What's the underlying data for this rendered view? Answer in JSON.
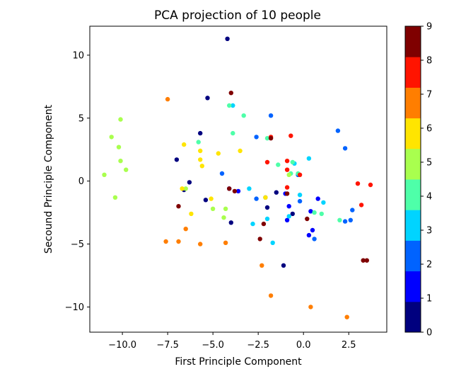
{
  "chart_data": {
    "type": "scatter",
    "title": "PCA projection of 10 people",
    "xlabel": "First Principle Component",
    "ylabel": "Secound Principle Component",
    "xlim": [
      -11.8,
      4.6
    ],
    "ylim": [
      -12.0,
      12.3
    ],
    "xticks": [
      -10.0,
      -7.5,
      -5.0,
      -2.5,
      0.0,
      2.5
    ],
    "xtick_labels": [
      "−10.0",
      "−7.5",
      "−5.0",
      "−2.5",
      "0.0",
      "2.5"
    ],
    "yticks": [
      -10,
      -5,
      0,
      5,
      10
    ],
    "ytick_labels": [
      "−10",
      "−5",
      "0",
      "5",
      "10"
    ],
    "grid": false,
    "colormap": "jet",
    "colorbar": {
      "min": 0,
      "max": 9,
      "ticks": [
        0,
        1,
        2,
        3,
        4,
        5,
        6,
        7,
        8,
        9
      ],
      "tick_labels": [
        "0",
        "1",
        "2",
        "3",
        "4",
        "5",
        "6",
        "7",
        "8",
        "9"
      ],
      "colors": [
        "#00007f",
        "#0000ff",
        "#0063ff",
        "#00d4ff",
        "#4effa9",
        "#a9ff4e",
        "#ffe500",
        "#ff7e00",
        "#ff1400",
        "#7f0000"
      ]
    },
    "points": [
      {
        "x": -4.2,
        "y": 11.3,
        "label": 0
      },
      {
        "x": -5.3,
        "y": 6.6,
        "label": 0
      },
      {
        "x": -5.7,
        "y": 3.8,
        "label": 0
      },
      {
        "x": -7.0,
        "y": 1.7,
        "label": 0
      },
      {
        "x": -6.3,
        "y": -0.1,
        "label": 0
      },
      {
        "x": -6.6,
        "y": -0.7,
        "label": 0
      },
      {
        "x": -5.4,
        "y": -1.5,
        "label": 0
      },
      {
        "x": -4.0,
        "y": -3.3,
        "label": 0
      },
      {
        "x": -1.5,
        "y": -0.9,
        "label": 0
      },
      {
        "x": -2.0,
        "y": -2.1,
        "label": 0
      },
      {
        "x": -0.6,
        "y": -2.6,
        "label": 0
      },
      {
        "x": -1.1,
        "y": -6.7,
        "label": 0
      },
      {
        "x": -4.1,
        "y": -0.6,
        "label": 1
      },
      {
        "x": -3.6,
        "y": -0.8,
        "label": 1
      },
      {
        "x": -1.0,
        "y": -1.0,
        "label": 1
      },
      {
        "x": -0.8,
        "y": -2.0,
        "label": 1
      },
      {
        "x": 0.4,
        "y": -2.4,
        "label": 1
      },
      {
        "x": 0.5,
        "y": -3.9,
        "label": 1
      },
      {
        "x": 0.3,
        "y": -4.3,
        "label": 1
      },
      {
        "x": 0.8,
        "y": -1.4,
        "label": 1
      },
      {
        "x": -0.9,
        "y": -3.1,
        "label": 1
      },
      {
        "x": -1.8,
        "y": 5.2,
        "label": 2
      },
      {
        "x": -2.6,
        "y": 3.5,
        "label": 2
      },
      {
        "x": 1.9,
        "y": 4.0,
        "label": 2
      },
      {
        "x": 2.3,
        "y": 2.6,
        "label": 2
      },
      {
        "x": -4.5,
        "y": 0.6,
        "label": 2
      },
      {
        "x": -2.1,
        "y": -1.3,
        "label": 2
      },
      {
        "x": -0.2,
        "y": -1.6,
        "label": 2
      },
      {
        "x": -2.6,
        "y": -1.4,
        "label": 2
      },
      {
        "x": 0.6,
        "y": -4.6,
        "label": 2
      },
      {
        "x": 2.3,
        "y": -3.2,
        "label": 2
      },
      {
        "x": 2.6,
        "y": -3.1,
        "label": 2
      },
      {
        "x": 2.7,
        "y": -2.3,
        "label": 2
      },
      {
        "x": -0.3,
        "y": 0.5,
        "label": 2
      },
      {
        "x": -3.9,
        "y": 6.0,
        "label": 3
      },
      {
        "x": -0.5,
        "y": 1.4,
        "label": 3
      },
      {
        "x": 0.3,
        "y": 1.8,
        "label": 3
      },
      {
        "x": -0.8,
        "y": -2.8,
        "label": 3
      },
      {
        "x": -2.0,
        "y": -3.0,
        "label": 3
      },
      {
        "x": -2.8,
        "y": -3.4,
        "label": 3
      },
      {
        "x": -1.7,
        "y": -4.9,
        "label": 3
      },
      {
        "x": -3.0,
        "y": -0.6,
        "label": 3
      },
      {
        "x": 1.1,
        "y": -1.7,
        "label": 3
      },
      {
        "x": -0.2,
        "y": -1.1,
        "label": 3
      },
      {
        "x": -5.8,
        "y": 3.1,
        "label": 4
      },
      {
        "x": -4.1,
        "y": 6.0,
        "label": 4
      },
      {
        "x": -3.3,
        "y": 5.2,
        "label": 4
      },
      {
        "x": -3.9,
        "y": 3.8,
        "label": 4
      },
      {
        "x": -2.0,
        "y": 3.4,
        "label": 4
      },
      {
        "x": -1.4,
        "y": 1.3,
        "label": 4
      },
      {
        "x": -0.6,
        "y": 1.5,
        "label": 4
      },
      {
        "x": -0.7,
        "y": 0.6,
        "label": 4
      },
      {
        "x": -0.3,
        "y": 0.6,
        "label": 4
      },
      {
        "x": 0.6,
        "y": -2.5,
        "label": 4
      },
      {
        "x": 1.0,
        "y": -2.6,
        "label": 4
      },
      {
        "x": 2.0,
        "y": -3.1,
        "label": 4
      },
      {
        "x": -10.1,
        "y": 4.9,
        "label": 5
      },
      {
        "x": -10.6,
        "y": 3.5,
        "label": 5
      },
      {
        "x": -10.2,
        "y": 2.7,
        "label": 5
      },
      {
        "x": -10.1,
        "y": 1.6,
        "label": 5
      },
      {
        "x": -9.8,
        "y": 0.9,
        "label": 5
      },
      {
        "x": -11.0,
        "y": 0.5,
        "label": 5
      },
      {
        "x": -10.4,
        "y": -1.3,
        "label": 5
      },
      {
        "x": -6.5,
        "y": -0.6,
        "label": 5
      },
      {
        "x": -5.0,
        "y": -2.2,
        "label": 5
      },
      {
        "x": -4.3,
        "y": -2.2,
        "label": 5
      },
      {
        "x": -4.4,
        "y": -2.9,
        "label": 5
      },
      {
        "x": -0.8,
        "y": 0.5,
        "label": 5
      },
      {
        "x": -6.6,
        "y": 2.9,
        "label": 6
      },
      {
        "x": -5.7,
        "y": 2.4,
        "label": 6
      },
      {
        "x": -5.7,
        "y": 1.7,
        "label": 6
      },
      {
        "x": -5.6,
        "y": 1.2,
        "label": 6
      },
      {
        "x": -4.7,
        "y": 2.2,
        "label": 6
      },
      {
        "x": -3.5,
        "y": 2.4,
        "label": 6
      },
      {
        "x": -6.7,
        "y": -0.6,
        "label": 6
      },
      {
        "x": -6.2,
        "y": -2.6,
        "label": 6
      },
      {
        "x": -5.1,
        "y": -1.4,
        "label": 6
      },
      {
        "x": -2.1,
        "y": -1.3,
        "label": 6
      },
      {
        "x": -7.5,
        "y": 6.5,
        "label": 7
      },
      {
        "x": -6.5,
        "y": -3.8,
        "label": 7
      },
      {
        "x": -7.6,
        "y": -4.8,
        "label": 7
      },
      {
        "x": -6.9,
        "y": -4.8,
        "label": 7
      },
      {
        "x": -5.7,
        "y": -5.0,
        "label": 7
      },
      {
        "x": -4.3,
        "y": -4.9,
        "label": 7
      },
      {
        "x": -2.3,
        "y": -6.7,
        "label": 7
      },
      {
        "x": -1.8,
        "y": -9.1,
        "label": 7
      },
      {
        "x": 0.4,
        "y": -10.0,
        "label": 7
      },
      {
        "x": 2.4,
        "y": -10.8,
        "label": 7
      },
      {
        "x": -1.8,
        "y": 3.5,
        "label": 8
      },
      {
        "x": -0.7,
        "y": 3.6,
        "label": 8
      },
      {
        "x": -2.0,
        "y": 1.5,
        "label": 8
      },
      {
        "x": -0.9,
        "y": 1.6,
        "label": 8
      },
      {
        "x": -0.9,
        "y": 0.9,
        "label": 8
      },
      {
        "x": -0.2,
        "y": 0.5,
        "label": 8
      },
      {
        "x": -0.9,
        "y": -0.5,
        "label": 8
      },
      {
        "x": 3.0,
        "y": -0.2,
        "label": 8
      },
      {
        "x": 3.7,
        "y": -0.3,
        "label": 8
      },
      {
        "x": 3.2,
        "y": -1.9,
        "label": 8
      },
      {
        "x": -4.0,
        "y": 7.0,
        "label": 9
      },
      {
        "x": -1.8,
        "y": 3.4,
        "label": 9
      },
      {
        "x": -4.1,
        "y": -0.6,
        "label": 9
      },
      {
        "x": -3.8,
        "y": -0.8,
        "label": 9
      },
      {
        "x": -0.9,
        "y": -1.0,
        "label": 9
      },
      {
        "x": -6.9,
        "y": -2.0,
        "label": 9
      },
      {
        "x": 0.2,
        "y": -3.0,
        "label": 9
      },
      {
        "x": -2.2,
        "y": -3.4,
        "label": 9
      },
      {
        "x": -2.4,
        "y": -4.6,
        "label": 9
      },
      {
        "x": 3.3,
        "y": -6.3,
        "label": 9
      },
      {
        "x": 3.5,
        "y": -6.3,
        "label": 9
      }
    ]
  }
}
